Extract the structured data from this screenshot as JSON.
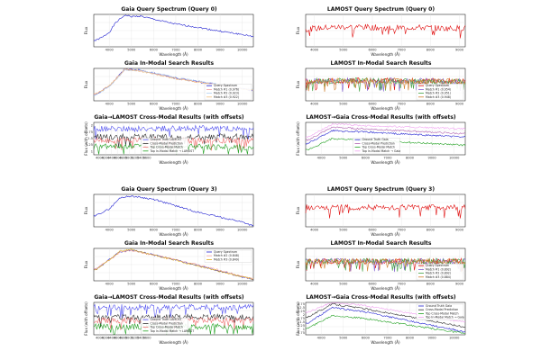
{
  "figure": {
    "wavelength_label": "Wavelength (Å)",
    "flux_label": "Flux",
    "flux_offset_label": "Flux (with offsets)"
  },
  "chart_data": [
    {
      "id": "g0q",
      "type": "line",
      "title": "Gaia Query Spectrum (Query 0)",
      "kind": "gaia",
      "xlabel": "Wavelength (Å)",
      "ylabel": "Flux",
      "xlim": [
        3300,
        10500
      ],
      "xticks": [
        4000,
        5000,
        6000,
        7000,
        8000,
        9000,
        10000
      ],
      "grid": true,
      "legend": "none",
      "series": [
        {
          "color": "#1f1fd0",
          "values": [
            [
              3400,
              0.2
            ],
            [
              3700,
              0.3
            ],
            [
              4000,
              0.45
            ],
            [
              4300,
              0.75
            ],
            [
              4700,
              0.98
            ],
            [
              5000,
              0.93
            ],
            [
              5400,
              0.95
            ],
            [
              6000,
              0.85
            ],
            [
              7000,
              0.7
            ],
            [
              8000,
              0.6
            ],
            [
              9000,
              0.48
            ],
            [
              10000,
              0.38
            ],
            [
              10400,
              0.32
            ]
          ]
        }
      ]
    },
    {
      "id": "l0q",
      "type": "line",
      "title": "LAMOST Query Spectrum (Query 0)",
      "kind": "lamost",
      "xlabel": "Wavelength (Å)",
      "ylabel": "Flux",
      "xlim": [
        3700,
        9200
      ],
      "xticks": [
        4000,
        5000,
        6000,
        7000,
        8000,
        9000
      ],
      "grid": true,
      "legend": "none",
      "series": [
        {
          "color": "#e01010",
          "values": [
            [
              3800,
              0.55
            ],
            [
              4500,
              0.6
            ],
            [
              5500,
              0.62
            ],
            [
              6500,
              0.58
            ],
            [
              7500,
              0.6
            ],
            [
              8500,
              0.57
            ],
            [
              9100,
              0.58
            ]
          ]
        }
      ]
    },
    {
      "id": "g0m",
      "type": "line",
      "title": "Gaia In-Modal Search Results",
      "kind": "gaia",
      "xlabel": "Wavelength (Å)",
      "ylabel": "Flux",
      "xlim": [
        3300,
        10500
      ],
      "xticks": [
        4000,
        5000,
        6000,
        7000,
        8000,
        9000,
        10000
      ],
      "grid": true,
      "legend": "bottom-right",
      "series": [
        {
          "name": "Query Spectrum",
          "color": "#1f1fd0",
          "values": [
            [
              3400,
              0.2
            ],
            [
              4000,
              0.45
            ],
            [
              4700,
              0.98
            ],
            [
              5400,
              0.95
            ],
            [
              7000,
              0.7
            ],
            [
              9000,
              0.48
            ],
            [
              10400,
              0.32
            ]
          ]
        },
        {
          "name": "Match #1 (0.976)",
          "color": "#f0a0a0",
          "values": [
            [
              3400,
              0.22
            ],
            [
              4000,
              0.47
            ],
            [
              4700,
              0.96
            ],
            [
              5400,
              0.93
            ],
            [
              7000,
              0.69
            ],
            [
              9000,
              0.49
            ],
            [
              10400,
              0.34
            ]
          ]
        },
        {
          "name": "Match #2 (0.923)",
          "color": "#b0d0f0",
          "values": [
            [
              3400,
              0.18
            ],
            [
              4000,
              0.44
            ],
            [
              4700,
              0.95
            ],
            [
              5400,
              0.94
            ],
            [
              7000,
              0.72
            ],
            [
              9000,
              0.5
            ],
            [
              10400,
              0.35
            ]
          ]
        },
        {
          "name": "Match #3 (0.922)",
          "color": "#f0c080",
          "values": [
            [
              3400,
              0.21
            ],
            [
              4000,
              0.46
            ],
            [
              4700,
              0.97
            ],
            [
              5400,
              0.92
            ],
            [
              7000,
              0.68
            ],
            [
              9000,
              0.47
            ],
            [
              10400,
              0.33
            ]
          ]
        }
      ]
    },
    {
      "id": "l0m",
      "type": "line",
      "title": "LAMOST In-Modal Search Results",
      "kind": "lamost",
      "xlabel": "Wavelength (Å)",
      "ylabel": "Flux",
      "xlim": [
        3700,
        9200
      ],
      "xticks": [
        4000,
        5000,
        6000,
        7000,
        8000,
        9000
      ],
      "grid": true,
      "legend": "bottom-right",
      "series": [
        {
          "name": "Query Spectrum",
          "color": "#e01010",
          "values": [
            [
              3800,
              0.6
            ],
            [
              6000,
              0.62
            ],
            [
              9100,
              0.6
            ]
          ]
        },
        {
          "name": "Match #1 (0.954)",
          "color": "#8060d0",
          "values": [
            [
              3800,
              0.6
            ],
            [
              6000,
              0.63
            ],
            [
              9100,
              0.6
            ]
          ]
        },
        {
          "name": "Match #2 (0.951)",
          "color": "#40a040",
          "values": [
            [
              3800,
              0.61
            ],
            [
              6000,
              0.62
            ],
            [
              9100,
              0.59
            ]
          ]
        },
        {
          "name": "Match #3 (0.948)",
          "color": "#d08030",
          "values": [
            [
              3800,
              0.6
            ],
            [
              6000,
              0.62
            ],
            [
              9100,
              0.6
            ]
          ]
        }
      ]
    },
    {
      "id": "g0x",
      "type": "line",
      "title": "Gaia→LAMOST Cross-Modal Results (with offsets)",
      "kind": "lamost",
      "xlabel": "Wavelength (Å)",
      "ylabel": "Flux (with offsets)",
      "xlim": [
        3800,
        9200
      ],
      "xticks": [
        4000,
        4200,
        4400,
        4600,
        4800,
        5000,
        5200,
        5400,
        5600
      ],
      "yticks": [
        1.0,
        1.25,
        1.5,
        1.75,
        2.0
      ],
      "grid": true,
      "legend": "bottom-center",
      "series": [
        {
          "name": "Ground Truth LAMOST",
          "color": "#5050f0",
          "values": [
            [
              3800,
              0.8
            ],
            [
              9100,
              0.82
            ]
          ]
        },
        {
          "name": "Cross-Modal Prediction",
          "color": "#303030",
          "values": [
            [
              3800,
              0.55
            ],
            [
              9100,
              0.56
            ]
          ]
        },
        {
          "name": "Top Cross-Modal Match",
          "color": "#f07070",
          "values": [
            [
              3800,
              0.45
            ],
            [
              9100,
              0.44
            ]
          ]
        },
        {
          "name": "Top In-Modal Match → LAMOST",
          "color": "#20a020",
          "values": [
            [
              3800,
              0.25
            ],
            [
              9100,
              0.24
            ]
          ]
        }
      ]
    },
    {
      "id": "l0x",
      "type": "line",
      "title": "LAMOST→Gaia Cross-Modal Results (with offsets)",
      "kind": "gaia",
      "xlabel": "Wavelength (Å)",
      "ylabel": "Flux (with offsets)",
      "xlim": [
        3300,
        10500
      ],
      "xticks": [
        4000,
        5000,
        6000,
        7000,
        8000,
        9000,
        10000
      ],
      "grid": true,
      "legend": "bottom-center",
      "series": [
        {
          "name": "Ground Truth Gaia",
          "color": "#1f1fd0",
          "values": [
            [
              3400,
              0.35
            ],
            [
              4500,
              0.75
            ],
            [
              6000,
              0.7
            ],
            [
              10400,
              0.55
            ]
          ]
        },
        {
          "name": "Cross-Modal Prediction",
          "color": "#b060b0",
          "values": [
            [
              3400,
              0.45
            ],
            [
              4500,
              0.85
            ],
            [
              6000,
              0.8
            ],
            [
              10400,
              0.65
            ]
          ]
        },
        {
          "name": "Top Cross-Modal Match",
          "color": "#20a020",
          "values": [
            [
              3400,
              0.15
            ],
            [
              4500,
              0.5
            ],
            [
              6000,
              0.45
            ],
            [
              10400,
              0.3
            ]
          ]
        },
        {
          "name": "Top In-Modal Match → Gaia",
          "color": "#f0a0f0",
          "values": [
            [
              3400,
              0.55
            ],
            [
              4500,
              0.95
            ],
            [
              6000,
              0.9
            ],
            [
              10400,
              0.8
            ]
          ]
        }
      ]
    },
    {
      "id": "g3q",
      "type": "line",
      "title": "Gaia Query Spectrum (Query 3)",
      "kind": "gaia",
      "xlabel": "Wavelength (Å)",
      "ylabel": "Flux",
      "xlim": [
        3300,
        10500
      ],
      "xticks": [
        4000,
        5000,
        6000,
        7000,
        8000,
        9000,
        10000
      ],
      "grid": true,
      "legend": "none",
      "series": [
        {
          "color": "#1f1fd0",
          "values": [
            [
              3400,
              0.35
            ],
            [
              4000,
              0.55
            ],
            [
              4500,
              0.9
            ],
            [
              5000,
              0.95
            ],
            [
              6000,
              0.85
            ],
            [
              7000,
              0.65
            ],
            [
              8000,
              0.45
            ],
            [
              9000,
              0.3
            ],
            [
              10000,
              0.15
            ],
            [
              10400,
              0.05
            ]
          ]
        }
      ]
    },
    {
      "id": "l3q",
      "type": "line",
      "title": "LAMOST Query Spectrum (Query 3)",
      "kind": "lamost",
      "xlabel": "Wavelength (Å)",
      "ylabel": "Flux",
      "xlim": [
        3700,
        9200
      ],
      "xticks": [
        4000,
        5000,
        6000,
        7000,
        8000,
        9000
      ],
      "grid": true,
      "legend": "none",
      "series": [
        {
          "color": "#e01010",
          "values": [
            [
              3800,
              0.6
            ],
            [
              9100,
              0.6
            ]
          ]
        }
      ]
    },
    {
      "id": "g3m",
      "type": "line",
      "title": "Gaia In-Modal Search Results",
      "kind": "gaia",
      "xlabel": "Wavelength (Å)",
      "ylabel": "Flux",
      "xlim": [
        3300,
        10500
      ],
      "xticks": [
        4000,
        5000,
        6000,
        7000,
        8000,
        9000,
        10000
      ],
      "grid": true,
      "legend": "top-right",
      "series": [
        {
          "name": "Query Spectrum",
          "color": "#1f1fd0",
          "values": [
            [
              3400,
              0.35
            ],
            [
              4500,
              0.9
            ],
            [
              5000,
              0.95
            ],
            [
              7000,
              0.65
            ],
            [
              9000,
              0.3
            ],
            [
              10400,
              0.05
            ]
          ]
        },
        {
          "name": "Match #2 (0.848)",
          "color": "#f0a0a0",
          "values": [
            [
              3400,
              0.37
            ],
            [
              4500,
              0.88
            ],
            [
              5000,
              0.93
            ],
            [
              7000,
              0.66
            ],
            [
              9000,
              0.32
            ],
            [
              10400,
              0.07
            ]
          ]
        },
        {
          "name": "Match #3 (0.849)",
          "color": "#e0b020",
          "values": [
            [
              3400,
              0.33
            ],
            [
              4500,
              0.92
            ],
            [
              5000,
              0.96
            ],
            [
              7000,
              0.63
            ],
            [
              9000,
              0.29
            ],
            [
              10400,
              0.06
            ]
          ]
        }
      ]
    },
    {
      "id": "l3m",
      "type": "line",
      "title": "LAMOST In-Modal Search Results",
      "kind": "lamost",
      "xlabel": "Wavelength (Å)",
      "ylabel": "Flux",
      "xlim": [
        3700,
        9200
      ],
      "xticks": [
        4000,
        5000,
        6000,
        7000,
        8000,
        9000
      ],
      "grid": true,
      "legend": "bottom-right",
      "series": [
        {
          "name": "Query Spectrum",
          "color": "#e01010",
          "values": [
            [
              3800,
              0.6
            ],
            [
              9100,
              0.6
            ]
          ]
        },
        {
          "name": "Match #1 (0.892)",
          "color": "#8060d0",
          "values": [
            [
              3800,
              0.61
            ],
            [
              9100,
              0.6
            ]
          ]
        },
        {
          "name": "Match #2 (0.892)",
          "color": "#40a040",
          "values": [
            [
              3800,
              0.6
            ],
            [
              9100,
              0.61
            ]
          ]
        },
        {
          "name": "Match #3 (0.884)",
          "color": "#d08030",
          "values": [
            [
              3800,
              0.6
            ],
            [
              9100,
              0.6
            ]
          ]
        }
      ]
    },
    {
      "id": "g3x",
      "type": "line",
      "title": "Gaia→LAMOST Cross-Modal Results (with offsets)",
      "kind": "lamost",
      "xlabel": "Wavelength (Å)",
      "ylabel": "Flux (with offsets)",
      "xlim": [
        3800,
        9200
      ],
      "xticks": [
        4000,
        4200,
        4400,
        4600,
        4800,
        5000,
        5200,
        5400,
        5600
      ],
      "grid": true,
      "legend": "bottom-center",
      "series": [
        {
          "name": "Ground Truth LAMOST",
          "color": "#5050f0",
          "values": [
            [
              3800,
              0.85
            ],
            [
              9100,
              0.85
            ]
          ]
        },
        {
          "name": "Cross-Modal Prediction",
          "color": "#303030",
          "values": [
            [
              3800,
              0.55
            ],
            [
              9100,
              0.55
            ]
          ]
        },
        {
          "name": "Top Cross-Modal Match",
          "color": "#f07070",
          "values": [
            [
              3800,
              0.45
            ],
            [
              9100,
              0.45
            ]
          ]
        },
        {
          "name": "Top In-Modal Match → LAMOST",
          "color": "#20a020",
          "values": [
            [
              3800,
              0.25
            ],
            [
              9100,
              0.25
            ]
          ]
        }
      ]
    },
    {
      "id": "l3x",
      "type": "line",
      "title": "LAMOST→Gaia Cross-Modal Results (with offsets)",
      "kind": "gaia",
      "xlabel": "Wavelength (Å)",
      "ylabel": "Flux (with offsets)",
      "xlim": [
        3300,
        10500
      ],
      "xticks": [
        4000,
        5000,
        6000,
        7000,
        8000,
        9000,
        10000
      ],
      "yticks": [
        0.75,
        1.0,
        1.25,
        1.5,
        1.75,
        2.0,
        2.25,
        2.5,
        2.75
      ],
      "grid": true,
      "legend": "top-right",
      "series": [
        {
          "name": "Ground Truth Gaia",
          "color": "#1f1fd0",
          "values": [
            [
              3400,
              0.35
            ],
            [
              4500,
              0.85
            ],
            [
              6000,
              0.7
            ],
            [
              10400,
              0.1
            ]
          ]
        },
        {
          "name": "Cross-Modal Prediction",
          "color": "#303030",
          "values": [
            [
              3400,
              0.55
            ],
            [
              4500,
              0.95
            ],
            [
              6000,
              0.8
            ],
            [
              10400,
              0.25
            ]
          ]
        },
        {
          "name": "Top Cross-Modal Match",
          "color": "#20a020",
          "values": [
            [
              3400,
              0.2
            ],
            [
              4500,
              0.6
            ],
            [
              6000,
              0.5
            ],
            [
              10400,
              0.05
            ]
          ]
        },
        {
          "name": "Top In-Modal Match → Gaia",
          "color": "#f0a0f0",
          "values": [
            [
              3400,
              0.7
            ],
            [
              4500,
              1.0
            ],
            [
              6000,
              0.9
            ],
            [
              10400,
              0.4
            ]
          ]
        }
      ]
    }
  ]
}
